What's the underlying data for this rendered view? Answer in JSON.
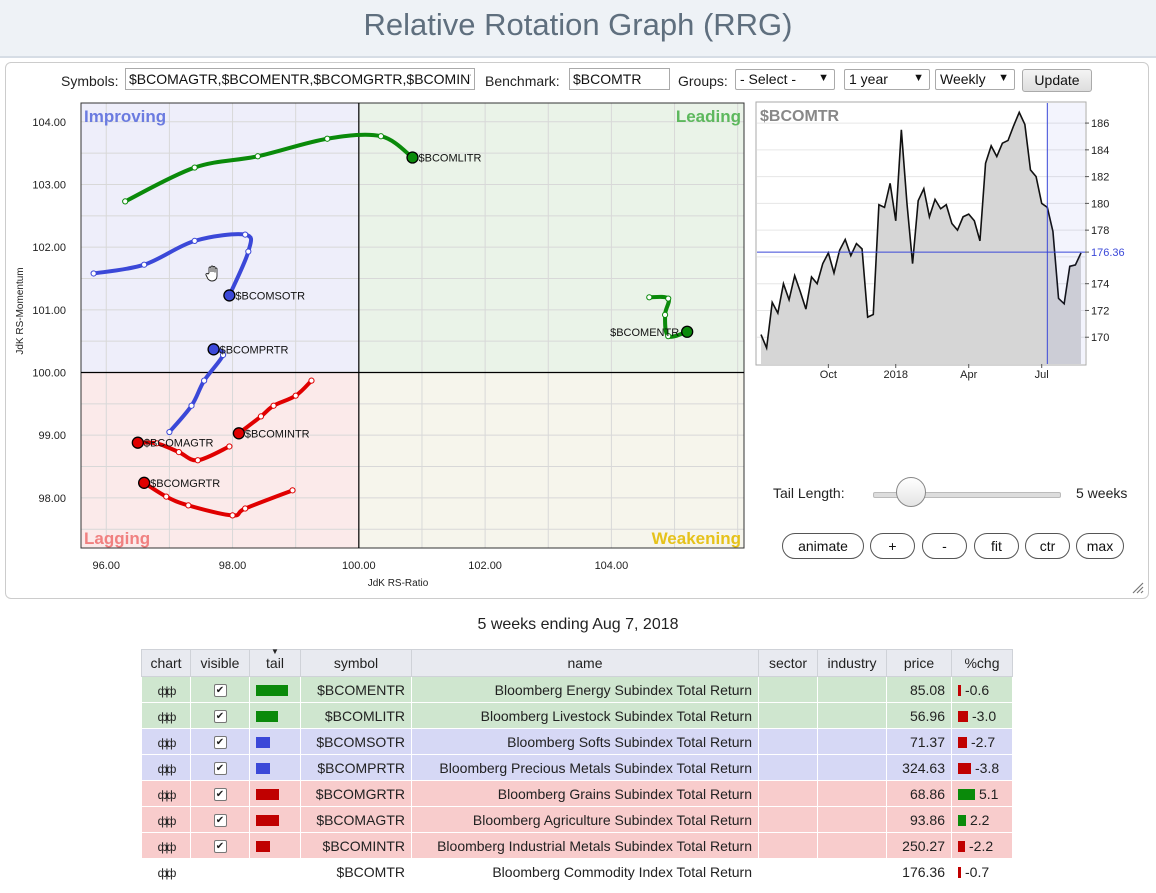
{
  "page_title": "Relative Rotation Graph (RRG)",
  "toolbar": {
    "symbols_label": "Symbols:",
    "symbols_value": "$BCOMAGTR,$BCOMENTR,$BCOMGRTR,$BCOMINTR,$BCOMLITR,$BCOMSOTR,$BCOMPRTR",
    "benchmark_label": "Benchmark:",
    "benchmark_value": "$BCOMTR",
    "groups_label": "Groups:",
    "groups_value": "- Select -",
    "period_value": "1 year",
    "frequency_value": "Weekly",
    "update_label": "Update"
  },
  "rrg": {
    "quadrants": {
      "improving": "Improving",
      "leading": "Leading",
      "lagging": "Lagging",
      "weakening": "Weakening"
    },
    "x_label": "JdK RS-Ratio",
    "y_label": "JdK RS-Momentum",
    "x_ticks": [
      "96.00",
      "98.00",
      "100.00",
      "102.00",
      "104.00"
    ],
    "y_ticks": [
      "104.00",
      "103.00",
      "102.00",
      "101.00",
      "100.00",
      "99.00",
      "98.00"
    ],
    "colors": {
      "green": "#0a8a0a",
      "blue": "#3b48d8",
      "red": "#e00000"
    },
    "series": [
      {
        "symbol": "$BCOMLITR",
        "color": "green",
        "points": [
          [
            96.3,
            102.73
          ],
          [
            97.4,
            103.27
          ],
          [
            98.4,
            103.45
          ],
          [
            99.5,
            103.73
          ],
          [
            100.35,
            103.77
          ],
          [
            100.85,
            103.43
          ]
        ]
      },
      {
        "symbol": "$BCOMENTR",
        "color": "green",
        "points": [
          [
            104.6,
            101.2
          ],
          [
            104.9,
            101.18
          ],
          [
            104.85,
            100.92
          ],
          [
            104.9,
            100.58
          ],
          [
            105.2,
            100.65
          ]
        ]
      },
      {
        "symbol": "$BCOMSOTR",
        "color": "blue",
        "points": [
          [
            95.8,
            101.58
          ],
          [
            96.6,
            101.72
          ],
          [
            97.4,
            102.1
          ],
          [
            98.2,
            102.2
          ],
          [
            98.25,
            101.93
          ],
          [
            97.95,
            101.23
          ]
        ]
      },
      {
        "symbol": "$BCOMPRTR",
        "color": "blue",
        "points": [
          [
            97.0,
            99.05
          ],
          [
            97.35,
            99.47
          ],
          [
            97.55,
            99.87
          ],
          [
            97.85,
            100.28
          ],
          [
            97.7,
            100.37
          ]
        ]
      },
      {
        "symbol": "$BCOMINTR",
        "color": "red",
        "points": [
          [
            99.25,
            99.87
          ],
          [
            99.0,
            99.63
          ],
          [
            98.65,
            99.47
          ],
          [
            98.45,
            99.3
          ],
          [
            98.1,
            99.03
          ]
        ]
      },
      {
        "symbol": "$BCOMAGTR",
        "color": "red",
        "points": [
          [
            97.95,
            98.82
          ],
          [
            97.45,
            98.6
          ],
          [
            97.15,
            98.73
          ],
          [
            96.8,
            98.87
          ],
          [
            96.5,
            98.88
          ]
        ]
      },
      {
        "symbol": "$BCOMGRTR",
        "color": "red",
        "points": [
          [
            98.95,
            98.12
          ],
          [
            98.2,
            97.83
          ],
          [
            98.0,
            97.72
          ],
          [
            97.3,
            97.88
          ],
          [
            96.95,
            98.02
          ],
          [
            96.6,
            98.24
          ]
        ]
      }
    ]
  },
  "benchmark_chart": {
    "title": "$BCOMTR",
    "current_value": "176.36",
    "y_ticks": [
      "186",
      "184",
      "182",
      "180",
      "178",
      "176.36",
      "174",
      "172",
      "170"
    ],
    "x_ticks": [
      "Oct",
      "2018",
      "Apr",
      "Jul"
    ],
    "ylim": [
      168,
      187.5
    ],
    "prices": [
      170.2,
      169.2,
      172.6,
      171.8,
      174.0,
      172.8,
      174.6,
      173.4,
      172.1,
      174.5,
      174.0,
      175.5,
      176.3,
      174.8,
      176.5,
      177.3,
      176.1,
      177.0,
      176.6,
      171.5,
      171.7,
      179.9,
      179.7,
      181.5,
      178.7,
      185.5,
      180.0,
      175.5,
      180.2,
      181.1,
      179.0,
      180.3,
      179.6,
      179.9,
      178.5,
      178.0,
      179.0,
      179.2,
      178.7,
      177.2,
      183.0,
      184.3,
      183.5,
      184.5,
      184.7,
      185.8,
      186.8,
      185.9,
      182.5,
      182.0,
      180.0,
      179.7,
      177.9,
      172.9,
      172.5,
      175.3,
      175.4,
      176.3
    ]
  },
  "controls": {
    "tail_length_label": "Tail Length:",
    "tail_length_value": "5 weeks",
    "tail_length_fraction": 0.167,
    "buttons": [
      "animate",
      "+",
      "-",
      "fit",
      "ctr",
      "max"
    ]
  },
  "caption": "5 weeks ending Aug 7, 2018",
  "table": {
    "headers": [
      "chart",
      "visible",
      "tail",
      "symbol",
      "name",
      "sector",
      "industry",
      "price",
      "%chg"
    ],
    "rows": [
      {
        "symbol": "$BCOMENTR",
        "name": "Bloomberg Energy Subindex Total Return",
        "price": "85.08",
        "chg": "-0.6",
        "visible": true,
        "tail_color": "#0a8a0a",
        "tail_len": 0.9,
        "row_bg": "#cfe6cf",
        "chg_color": "#c00000",
        "chg_len": 0.1
      },
      {
        "symbol": "$BCOMLITR",
        "name": "Bloomberg Livestock Subindex Total Return",
        "price": "56.96",
        "chg": "-3.0",
        "visible": true,
        "tail_color": "#0a8a0a",
        "tail_len": 0.6,
        "row_bg": "#cfe6cf",
        "chg_color": "#c00000",
        "chg_len": 0.5
      },
      {
        "symbol": "$BCOMSOTR",
        "name": "Bloomberg Softs Subindex Total Return",
        "price": "71.37",
        "chg": "-2.7",
        "visible": true,
        "tail_color": "#3b48d8",
        "tail_len": 0.4,
        "row_bg": "#d6d8f5",
        "chg_color": "#c00000",
        "chg_len": 0.45
      },
      {
        "symbol": "$BCOMPRTR",
        "name": "Bloomberg Precious Metals Subindex Total Return",
        "price": "324.63",
        "chg": "-3.8",
        "visible": true,
        "tail_color": "#3b48d8",
        "tail_len": 0.4,
        "row_bg": "#d6d8f5",
        "chg_color": "#c00000",
        "chg_len": 0.65
      },
      {
        "symbol": "$BCOMGRTR",
        "name": "Bloomberg Grains Subindex Total Return",
        "price": "68.86",
        "chg": "5.1",
        "visible": true,
        "tail_color": "#c00000",
        "tail_len": 0.65,
        "row_bg": "#f8cccc",
        "chg_color": "#0a8a0a",
        "chg_len": 0.85
      },
      {
        "symbol": "$BCOMAGTR",
        "name": "Bloomberg Agriculture Subindex Total Return",
        "price": "93.86",
        "chg": "2.2",
        "visible": true,
        "tail_color": "#c00000",
        "tail_len": 0.65,
        "row_bg": "#f8cccc",
        "chg_color": "#0a8a0a",
        "chg_len": 0.4
      },
      {
        "symbol": "$BCOMINTR",
        "name": "Bloomberg Industrial Metals Subindex Total Return",
        "price": "250.27",
        "chg": "-2.2",
        "visible": true,
        "tail_color": "#c00000",
        "tail_len": 0.4,
        "row_bg": "#f8cccc",
        "chg_color": "#c00000",
        "chg_len": 0.35
      },
      {
        "symbol": "$BCOMTR",
        "name": "Bloomberg Commodity Index Total Return",
        "price": "176.36",
        "chg": "-0.7",
        "visible": false,
        "tail_color": "",
        "tail_len": 0,
        "row_bg": "#ffffff",
        "chg_color": "#c00000",
        "chg_len": 0.12
      }
    ]
  }
}
